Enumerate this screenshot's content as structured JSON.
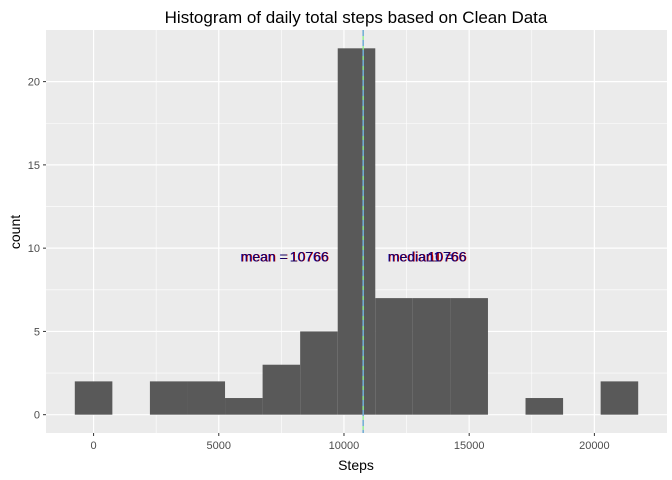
{
  "chart_data": {
    "type": "bar",
    "title": "Histogram of daily total steps based on Clean Data",
    "xlabel": "Steps",
    "ylabel": "count",
    "xlim": [
      -1900,
      22900
    ],
    "ylim": [
      -1.1,
      23.1
    ],
    "x_ticks": [
      0,
      5000,
      10000,
      15000,
      20000
    ],
    "y_ticks": [
      0,
      5,
      10,
      15,
      20
    ],
    "bin_width": 1500,
    "bins": [
      {
        "x0": -750,
        "x1": 750,
        "count": 2
      },
      {
        "x0": 750,
        "x1": 2250,
        "count": 0
      },
      {
        "x0": 2250,
        "x1": 3750,
        "count": 2
      },
      {
        "x0": 3750,
        "x1": 5250,
        "count": 2
      },
      {
        "x0": 5250,
        "x1": 6750,
        "count": 1
      },
      {
        "x0": 6750,
        "x1": 8250,
        "count": 3
      },
      {
        "x0": 8250,
        "x1": 9750,
        "count": 5
      },
      {
        "x0": 9750,
        "x1": 11250,
        "count": 22
      },
      {
        "x0": 11250,
        "x1": 12750,
        "count": 7
      },
      {
        "x0": 12750,
        "x1": 14250,
        "count": 7
      },
      {
        "x0": 14250,
        "x1": 15750,
        "count": 7
      },
      {
        "x0": 15750,
        "x1": 17250,
        "count": 0
      },
      {
        "x0": 17250,
        "x1": 18750,
        "count": 1
      },
      {
        "x0": 18750,
        "x1": 20250,
        "count": 0
      },
      {
        "x0": 20250,
        "x1": 21750,
        "count": 2
      }
    ],
    "vlines": [
      {
        "x": 10766,
        "color": "#90ee90",
        "style": "solid"
      },
      {
        "x": 10766,
        "color": "#6fa8dc",
        "style": "dashed"
      }
    ],
    "annotations": [
      {
        "text": "mean =",
        "x": 6800,
        "y": 9.5,
        "color": "#ff0000",
        "overlay_color": "#0000ff"
      },
      {
        "text": "10766",
        "x": 8600,
        "y": 9.5,
        "color": "#ff0000",
        "overlay_color": "#0000ff"
      },
      {
        "text": "median1 =",
        "x": 13050,
        "y": 9.5,
        "color": "#ff0000",
        "overlay_color": "#0000ff"
      },
      {
        "text": "10766",
        "x": 14100,
        "y": 9.5,
        "color": "#ff0000",
        "overlay_color": "#0000ff"
      }
    ],
    "grid": true,
    "colors": {
      "panel_bg": "#ebebeb",
      "grid_major": "#ffffff",
      "bar_fill": "#595959",
      "tick_label": "#4d4d4d"
    }
  }
}
